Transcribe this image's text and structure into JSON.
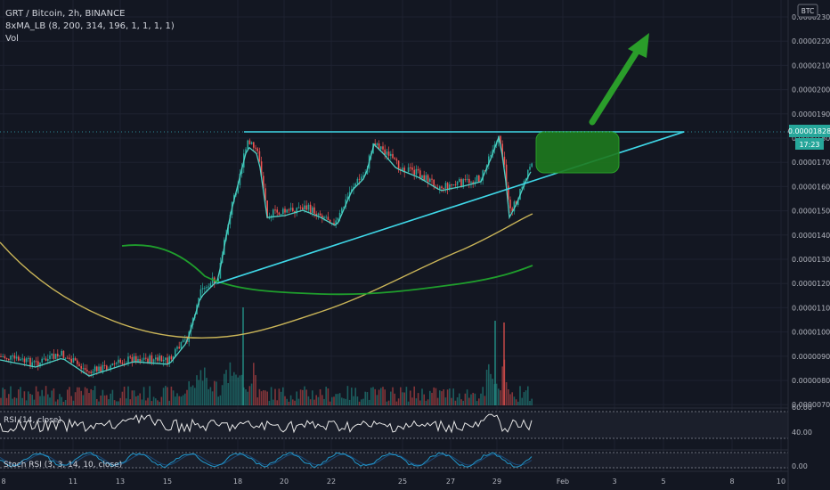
{
  "header": {
    "title": "GRT / Bitcoin, 2h, BINANCE",
    "indicator_ma": "8xMA_LB (8, 200, 314, 196, 1, 1, 1, 1)",
    "indicator_vol": "Vol"
  },
  "price_axis": {
    "currency": "BTC",
    "ticks": [
      "0.00002300",
      "0.00002200",
      "0.00002100",
      "0.00002000",
      "0.00001900",
      "0.00001800",
      "0.00001700",
      "0.00001600",
      "0.00001500",
      "0.00001400",
      "0.00001300",
      "0.00001200",
      "0.00001100",
      "0.00001000",
      "0.00000900",
      "0.00000800",
      "0.00000700"
    ],
    "current_price": "0.00001828",
    "countdown": "17:23"
  },
  "time_axis": {
    "labels": [
      "8",
      "11",
      "13",
      "15",
      "18",
      "20",
      "22",
      "25",
      "27",
      "29",
      "Feb",
      "3",
      "5",
      "8",
      "10"
    ]
  },
  "rsi": {
    "label": "RSI (14, close)",
    "ticks": [
      "60.00",
      "40.00"
    ]
  },
  "stoch": {
    "label": "Stoch RSI (3, 3, 14, 10, close)",
    "ticks": [
      "0.00"
    ]
  },
  "colors": {
    "background": "#131722",
    "up": "#26a69a",
    "down": "#ef5350",
    "trendline": "#3fd8e8",
    "ma_fast": "#4fd0c4",
    "ma_yellow": "#c9b458",
    "ma_green": "#1f9e2c",
    "target_box": "#1e7a1e",
    "arrow": "#2a9d2a",
    "rsi_line": "#e8e8e8",
    "stoch_k": "#2196c8",
    "stoch_d": "#1a4a7a"
  },
  "icons": {
    "arrow": "green-up-arrow",
    "target": "green-target-zone"
  }
}
